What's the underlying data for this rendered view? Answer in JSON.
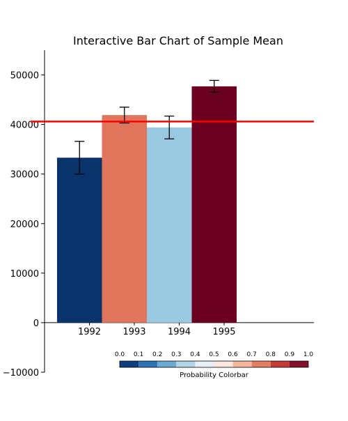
{
  "chart_data": {
    "type": "bar",
    "title": "Interactive Bar Chart of Sample Mean",
    "categories": [
      "1992",
      "1993",
      "1994",
      "1995"
    ],
    "values": [
      33300,
      41900,
      39400,
      47700
    ],
    "error": [
      3300,
      1600,
      2300,
      1200
    ],
    "bar_colors": [
      "#08346b",
      "#e0755c",
      "#99c9e0",
      "#6b0021"
    ],
    "reference_line": {
      "y": 40600,
      "color": "#ff0000"
    },
    "ylim": [
      -10000,
      55000
    ],
    "yticks": [
      -10000,
      0,
      10000,
      20000,
      30000,
      40000,
      50000
    ],
    "ytick_labels": [
      "−10000",
      "0",
      "10000",
      "20000",
      "30000",
      "40000",
      "50000"
    ],
    "xlabel": "",
    "ylabel": "",
    "grid": false,
    "colorbar": {
      "label": "Probability Colorbar",
      "ticks": [
        "0.0",
        "0.1",
        "0.2",
        "0.3",
        "0.4",
        "0.5",
        "0.6",
        "0.7",
        "0.8",
        "0.9",
        "1.0"
      ],
      "colors": [
        "#0f3f7c",
        "#2f75b5",
        "#6aa9d2",
        "#b2d4e8",
        "#e6f0f6",
        "#fbe7df",
        "#f5b89f",
        "#e37e61",
        "#c53b35",
        "#860f2b"
      ]
    }
  }
}
